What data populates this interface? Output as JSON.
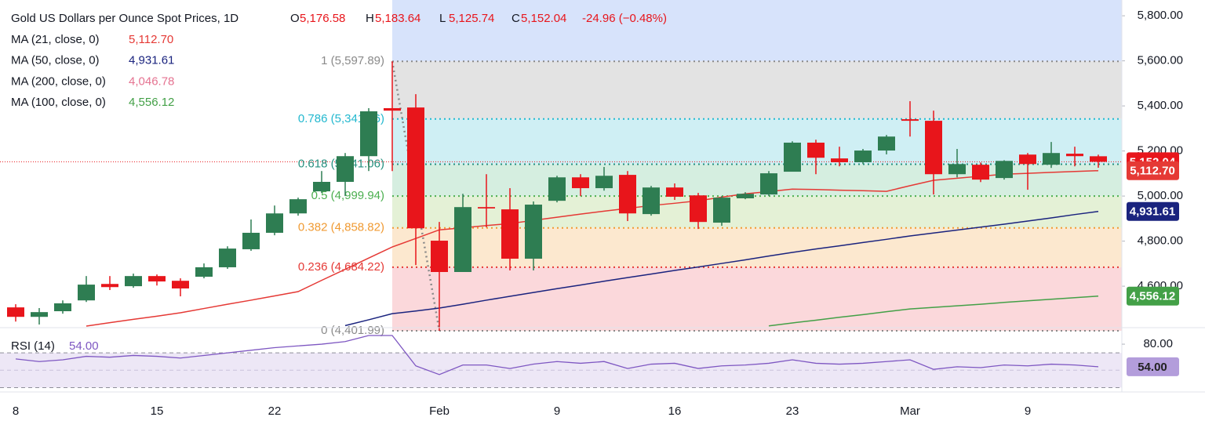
{
  "chart_data": {
    "type": "candlestick",
    "title": "Gold US Dollars per Ounce Spot Prices, 1D",
    "ohlc_header": [
      {
        "key": "O",
        "value": "5,176.58"
      },
      {
        "key": "H",
        "value": "5,183.64"
      },
      {
        "key": "L",
        "value": "5,125.74"
      },
      {
        "key": "C",
        "value": "5,152.04"
      }
    ],
    "change": "-24.96 (−0.48%)",
    "categories": [
      "8",
      null,
      null,
      null,
      null,
      null,
      "15",
      null,
      null,
      null,
      null,
      "22",
      null,
      null,
      null,
      null,
      null,
      null,
      "Feb",
      null,
      null,
      null,
      null,
      "9",
      null,
      null,
      null,
      null,
      "16",
      null,
      null,
      null,
      null,
      "23",
      null,
      null,
      null,
      null,
      "Mar",
      null,
      null,
      null,
      null,
      "9",
      null,
      null,
      null
    ],
    "open": [
      4506,
      4464,
      4489,
      4537,
      4610,
      4600,
      4645,
      4624,
      4642,
      4684,
      4764,
      4837,
      4923,
      5021,
      5063,
      5177,
      5390,
      5393,
      4802,
      4663,
      4951,
      4941,
      4722,
      4979,
      5083,
      5035,
      5094,
      4920,
      5038,
      5003,
      4882,
      4990,
      5007,
      5108,
      5237,
      5167,
      5150,
      5202,
      5341,
      5334,
      5097,
      5139,
      5080,
      5184,
      5139,
      5188,
      5176.58
    ],
    "high": [
      4520,
      4503,
      4537,
      4645,
      4645,
      4656,
      4652,
      4635,
      4701,
      4777,
      4896,
      4958,
      4993,
      5111,
      5191,
      5390,
      5597.89,
      5452,
      4885,
      5010,
      5097,
      5035,
      4976,
      5090,
      5097,
      5129,
      5111,
      5045,
      5056,
      5014,
      5000,
      5017,
      5111,
      5243,
      5250,
      5219,
      5209,
      5271,
      5421,
      5379,
      5209,
      5149,
      5159,
      5191,
      5240,
      5219,
      5183.64
    ],
    "low": [
      4443,
      4430,
      4478,
      4530,
      4583,
      4593,
      4603,
      4555,
      4635,
      4677,
      4757,
      4826,
      4913,
      5014,
      5000,
      5111,
      5111,
      4694,
      4401.99,
      4663,
      4861,
      4670,
      4670,
      4972,
      5000,
      5024,
      4889,
      4913,
      4983,
      4854,
      4868,
      4986,
      5000,
      5111,
      5097,
      5132,
      5142,
      5185,
      5264,
      5007,
      5083,
      5062,
      5073,
      5028,
      5125,
      5132,
      5125.74
    ],
    "close": [
      4464,
      4485,
      4524,
      4607,
      4596,
      4645,
      4621,
      4590,
      4684,
      4767,
      4837,
      4923,
      4986,
      5063,
      5177,
      5376,
      5379,
      4857,
      4663,
      4951,
      4945,
      4722,
      4962,
      5083,
      5035,
      5090,
      4923,
      5038,
      4997,
      4885,
      4993,
      5010,
      5101,
      5237,
      5170,
      5150,
      5202,
      5264,
      5334,
      5097,
      5142,
      5073,
      5156,
      5142,
      5191,
      5177,
      5152.04
    ],
    "up_color": "#2e7d52",
    "down_color": "#e8151b",
    "ylim": [
      4416,
      5870
    ],
    "yticks": [
      {
        "value": 5800,
        "label": "5,800.00"
      },
      {
        "value": 5600,
        "label": "5,600.00"
      },
      {
        "value": 5400,
        "label": "5,400.00"
      },
      {
        "value": 5200,
        "label": "5,200.00"
      },
      {
        "value": 5000,
        "label": "5,000.00"
      },
      {
        "value": 4800,
        "label": "4,800.00"
      },
      {
        "value": 4600,
        "label": "4,600.00"
      }
    ],
    "last_price": {
      "value": 5152.04,
      "label": "5,152.04"
    },
    "moving_averages": [
      {
        "name": "MA (21, close, 0)",
        "color": "#e53935",
        "value_label": "5,112.70",
        "values": [
          null,
          null,
          null,
          4423,
          4438,
          4453,
          4467,
          4482,
          4501,
          4520,
          4538,
          4557,
          4576,
          4626,
          4675,
          4725,
          4774,
          4812,
          4850,
          4859,
          4869,
          4878,
          4892,
          4906,
          4920,
          4933,
          4945,
          4958,
          4968,
          4979,
          4995,
          5010,
          5020,
          5031,
          5029,
          5026,
          5024,
          5021,
          5046,
          5070,
          5079,
          5088,
          5097,
          5101,
          5105,
          5109,
          5112.7
        ]
      },
      {
        "name": "MA (50, close, 0)",
        "color": "#1a237e",
        "value_label": "4,931.61",
        "values": [
          null,
          null,
          null,
          null,
          null,
          null,
          null,
          null,
          null,
          null,
          null,
          null,
          null,
          null,
          4425,
          4451,
          4478,
          4490,
          4503,
          4520,
          4538,
          4555,
          4572,
          4589,
          4605,
          4622,
          4638,
          4654,
          4670,
          4685,
          4701,
          4717,
          4734,
          4750,
          4765,
          4779,
          4794,
          4808,
          4823,
          4836,
          4849,
          4862,
          4875,
          4889,
          4903,
          4918,
          4931.61
        ]
      },
      {
        "name": "MA (200, close, 0)",
        "color": "#e57391",
        "value_label": "4,046.78"
      },
      {
        "name": "MA (100, close, 0)",
        "color": "#43a047",
        "value_label": "4,556.12",
        "values": [
          null,
          null,
          null,
          null,
          null,
          null,
          null,
          null,
          null,
          null,
          null,
          null,
          null,
          null,
          null,
          null,
          null,
          null,
          null,
          null,
          null,
          null,
          null,
          null,
          null,
          null,
          null,
          null,
          null,
          null,
          null,
          null,
          4424,
          4437,
          4449,
          4462,
          4474,
          4487,
          4499,
          4506,
          4513,
          4520,
          4528,
          4535,
          4542,
          4549,
          4556.12
        ]
      }
    ],
    "fibonacci": {
      "top_fill": "#d7e3fb",
      "levels": [
        {
          "value": 5597.89,
          "label": "1 (5,597.89)",
          "color": "#8a8a8a",
          "fill": "#e3e3e3"
        },
        {
          "value": 5341.96,
          "label": "0.786 (5,341.96)",
          "color": "#22b8cf",
          "fill": "#cfeff4"
        },
        {
          "value": 5141.06,
          "label": "0.618 (5,141.06)",
          "color": "#26907f",
          "fill": "#d5eee0"
        },
        {
          "value": 4999.94,
          "label": "0.5 (4,999.94)",
          "color": "#4caf50",
          "fill": "#e4f1d6"
        },
        {
          "value": 4858.82,
          "label": "0.382 (4,858.82)",
          "color": "#f09a32",
          "fill": "#fce8cf"
        },
        {
          "value": 4684.22,
          "label": "0.236 (4,684.22)",
          "color": "#e53935",
          "fill": "#fbd8db"
        },
        {
          "value": 4401.99,
          "label": "0 (4,401.99)",
          "color": "#8a8a8a"
        }
      ]
    },
    "rsi": {
      "name": "RSI (14)",
      "value_label": "54.00",
      "color": "#7e57c2",
      "values": [
        63,
        60,
        62,
        66,
        65,
        67,
        66,
        64,
        67,
        70,
        73,
        76,
        78,
        80,
        83,
        90,
        90,
        55,
        45,
        56,
        56,
        52,
        57,
        60,
        58,
        60,
        52,
        57,
        58,
        52,
        55,
        56,
        58,
        62,
        58,
        57,
        58,
        60,
        62,
        51,
        54,
        53,
        56,
        55,
        57,
        56,
        54
      ],
      "ylim": [
        25,
        99
      ],
      "yticks": [
        {
          "value": 80,
          "label": "80.00"
        }
      ],
      "levels": [
        70,
        50,
        30
      ]
    }
  }
}
